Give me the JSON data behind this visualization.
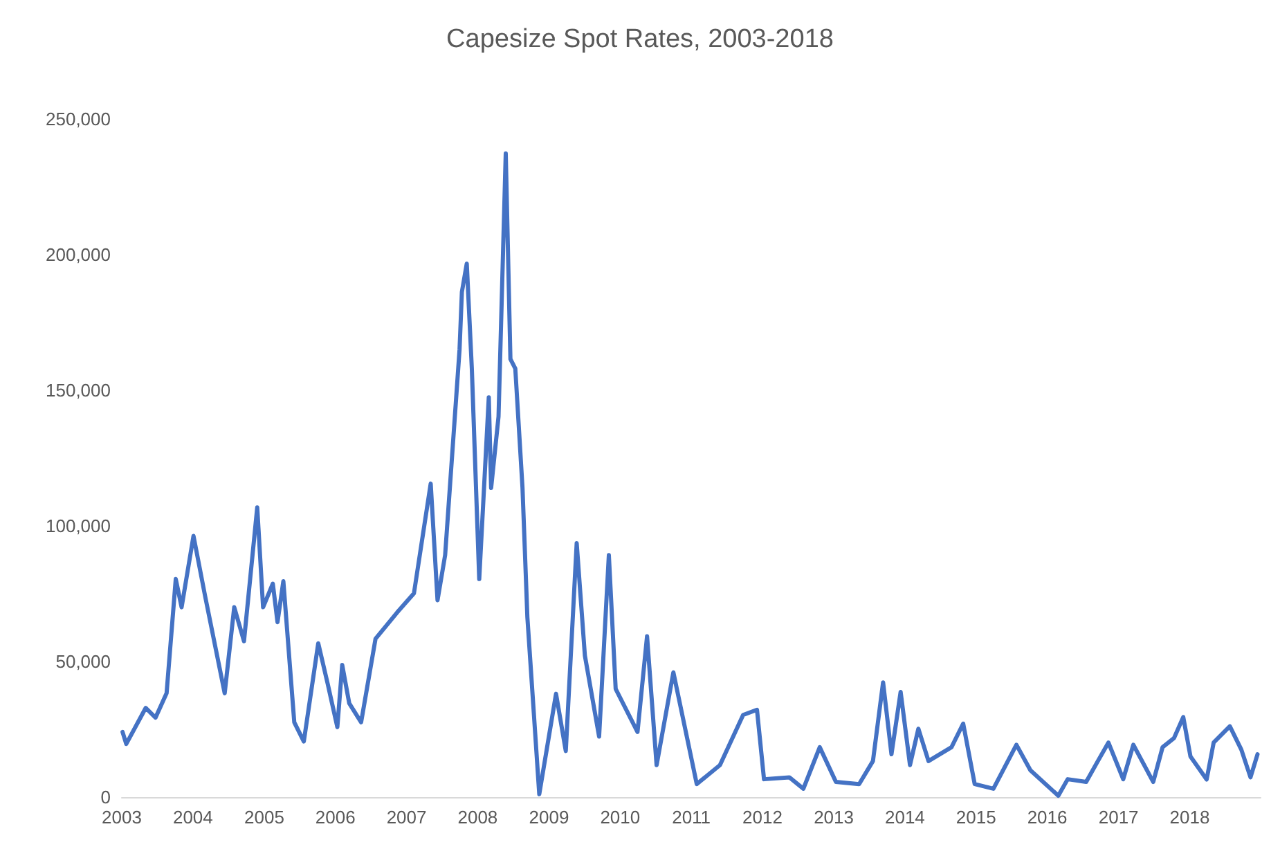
{
  "chart_data": {
    "type": "line",
    "title": "Capesize Spot Rates, 2003-2018",
    "x": [
      "2003-01-05",
      "2003-01-24",
      "2003-05-04",
      "2003-06-23",
      "2003-08-19",
      "2003-10-05",
      "2003-11-04",
      "2004-01-04",
      "2004-03-05",
      "2004-06-12",
      "2004-07-31",
      "2004-09-19",
      "2004-11-26",
      "2004-12-26",
      "2005-02-14",
      "2005-03-10",
      "2005-04-09",
      "2005-06-04",
      "2005-07-23",
      "2005-10-05",
      "2005-11-23",
      "2006-01-11",
      "2006-02-05",
      "2006-03-13",
      "2006-05-13",
      "2006-07-26",
      "2006-11-14",
      "2007-02-08",
      "2007-05-05",
      "2007-06-09",
      "2007-07-18",
      "2007-09-30",
      "2007-10-12",
      "2007-11-06",
      "2007-12-02",
      "2008-01-09",
      "2008-02-27",
      "2008-03-10",
      "2008-04-17",
      "2008-05-24",
      "2008-06-17",
      "2008-07-12",
      "2008-08-18",
      "2008-09-12",
      "2008-11-12",
      "2009-02-06",
      "2009-03-28",
      "2009-05-23",
      "2009-07-04",
      "2009-09-15",
      "2009-11-04",
      "2009-12-09",
      "2010-03-31",
      "2010-05-19",
      "2010-07-07",
      "2010-10-01",
      "2011-01-29",
      "2011-05-28",
      "2011-09-24",
      "2011-12-04",
      "2012-01-09",
      "2012-05-18",
      "2012-07-29",
      "2012-10-21",
      "2013-01-12",
      "2013-05-11",
      "2013-07-21",
      "2013-09-11",
      "2013-10-24",
      "2013-12-10",
      "2014-01-27",
      "2014-03-11",
      "2014-05-02",
      "2014-08-28",
      "2014-10-27",
      "2014-12-25",
      "2015-03-31",
      "2015-07-27",
      "2015-10-07",
      "2016-02-27",
      "2016-04-15",
      "2016-07-19",
      "2016-09-17",
      "2016-11-10",
      "2017-01-25",
      "2017-03-18",
      "2017-06-28",
      "2017-08-15",
      "2017-10-13",
      "2017-11-29",
      "2018-01-05",
      "2018-03-29",
      "2018-05-04",
      "2018-07-26",
      "2018-09-23",
      "2018-11-09",
      "2018-12-15"
    ],
    "series": [
      {
        "color": "#4472c4",
        "values": [
          24000,
          19600,
          32900,
          29300,
          38300,
          80400,
          70000,
          96300,
          73600,
          38300,
          70000,
          57500,
          106800,
          70000,
          78700,
          64500,
          79600,
          27600,
          20500,
          56700,
          41600,
          25800,
          48700,
          34600,
          27600,
          58400,
          68100,
          75100,
          115600,
          72600,
          89200,
          165000,
          186200,
          196700,
          158000,
          80400,
          147400,
          114000,
          140300,
          237300,
          161500,
          158000,
          114000,
          66300,
          1100,
          38100,
          17000,
          93600,
          52200,
          22300,
          89200,
          39900,
          24000,
          59300,
          11800,
          46000,
          4800,
          11800,
          30300,
          32200,
          6600,
          7300,
          3100,
          18400,
          5600,
          4800,
          13300,
          42300,
          15800,
          38800,
          11800,
          25200,
          13300,
          18400,
          27100,
          4800,
          3100,
          19300,
          9900,
          500,
          6600,
          5600,
          13300,
          20100,
          6600,
          19300,
          5600,
          18400,
          21800,
          29500,
          15000,
          6500,
          20100,
          26100,
          17500,
          7300,
          15800
        ]
      }
    ],
    "xlim": [
      "2003-01-01",
      "2018-12-31"
    ],
    "xticks": [
      "2003",
      "2004",
      "2005",
      "2006",
      "2007",
      "2008",
      "2009",
      "2010",
      "2011",
      "2012",
      "2013",
      "2014",
      "2015",
      "2016",
      "2017",
      "2018"
    ],
    "ylim": [
      0,
      250000
    ],
    "yticks": [
      0,
      {
        "value": 50000,
        "label": "50,000"
      },
      {
        "value": 100000,
        "label": "100,000"
      },
      {
        "value": 150000,
        "label": "150,000"
      },
      {
        "value": 200000,
        "label": "200,000"
      },
      {
        "value": 250000,
        "label": "250,000"
      }
    ],
    "grid": false,
    "marker": "none",
    "line_style": "solid"
  }
}
